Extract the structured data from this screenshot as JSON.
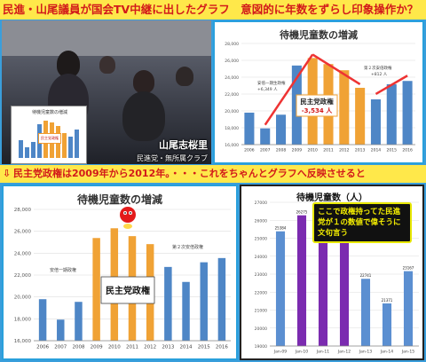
{
  "headline": "民進・山尾議員が国会TV中継に出したグラフ　意図的に年数をずらし印象操作か？",
  "subheadline": "民主党政権は2009年から2012年。・・・これをちゃんとグラフへ反映させると",
  "photo": {
    "name": "山尾志桜里",
    "party": "民進党・無所属クラブ",
    "inset_title": "待機児童数の増減",
    "inset_label": "民主党政権"
  },
  "colors": {
    "headline_bg": "#ffe84a",
    "headline_text": "#d21a1a",
    "bar_blue": "#4e86c6",
    "bar_orange": "#f0a235",
    "bar_purple": "#7b2bb0",
    "bar_light": "#5b8fd1"
  },
  "chart_data": [
    {
      "type": "bar",
      "title": "待機児童数の増減",
      "categories": [
        "2006",
        "2007",
        "2008",
        "2009",
        "2010",
        "2011",
        "2012",
        "2013",
        "2014",
        "2015",
        "2016"
      ],
      "values": [
        19794,
        17926,
        19550,
        25384,
        26275,
        25556,
        24825,
        22741,
        21371,
        23167,
        23553
      ],
      "highlight": [
        "2010",
        "2011",
        "2012",
        "2013"
      ],
      "ylim": [
        16000,
        28000
      ],
      "yticks": [
        "16,000",
        "18,000",
        "20,000",
        "22,000",
        "24,000",
        "26,000",
        "28,000"
      ],
      "annotations": [
        "安倍一期生政権",
        "+6,349 人",
        "民主党政権",
        "-3,534 人",
        "第２次安倍政権",
        "+812 人"
      ]
    },
    {
      "type": "bar",
      "title": "待機児童数の増減",
      "categories": [
        "2006",
        "2007",
        "2008",
        "2009",
        "2010",
        "2011",
        "2012",
        "2013",
        "2014",
        "2015",
        "2016"
      ],
      "values": [
        19794,
        17926,
        19550,
        25384,
        26275,
        25556,
        24825,
        22741,
        21371,
        23167,
        23553
      ],
      "highlight": [
        "2009",
        "2010",
        "2011",
        "2012"
      ],
      "ylim": [
        16000,
        28000
      ],
      "yticks": [
        "16,000",
        "18,000",
        "20,000",
        "22,000",
        "24,000",
        "26,000",
        "28,000"
      ],
      "annotations": [
        "安倍一期政権",
        "民主党政権",
        "第２次安倍政権"
      ]
    },
    {
      "type": "bar",
      "title": "待機児童数（人）",
      "categories": [
        "Jan-09",
        "Jan-10",
        "Jan-11",
        "Jan-12",
        "Jan-13",
        "Jan-14",
        "Jan-15"
      ],
      "values": [
        25384,
        26275,
        25556,
        24825,
        22741,
        21371,
        23167
      ],
      "highlight": [
        "Jan-10",
        "Jan-11",
        "Jan-12"
      ],
      "ylim": [
        19000,
        27000
      ],
      "yticks": [
        "19000",
        "20000",
        "21000",
        "22000",
        "23000",
        "24000",
        "25000",
        "26000",
        "27000"
      ],
      "callout": "ここで政権持ってた民進党が１の数値で偉そうに文句言う"
    }
  ]
}
